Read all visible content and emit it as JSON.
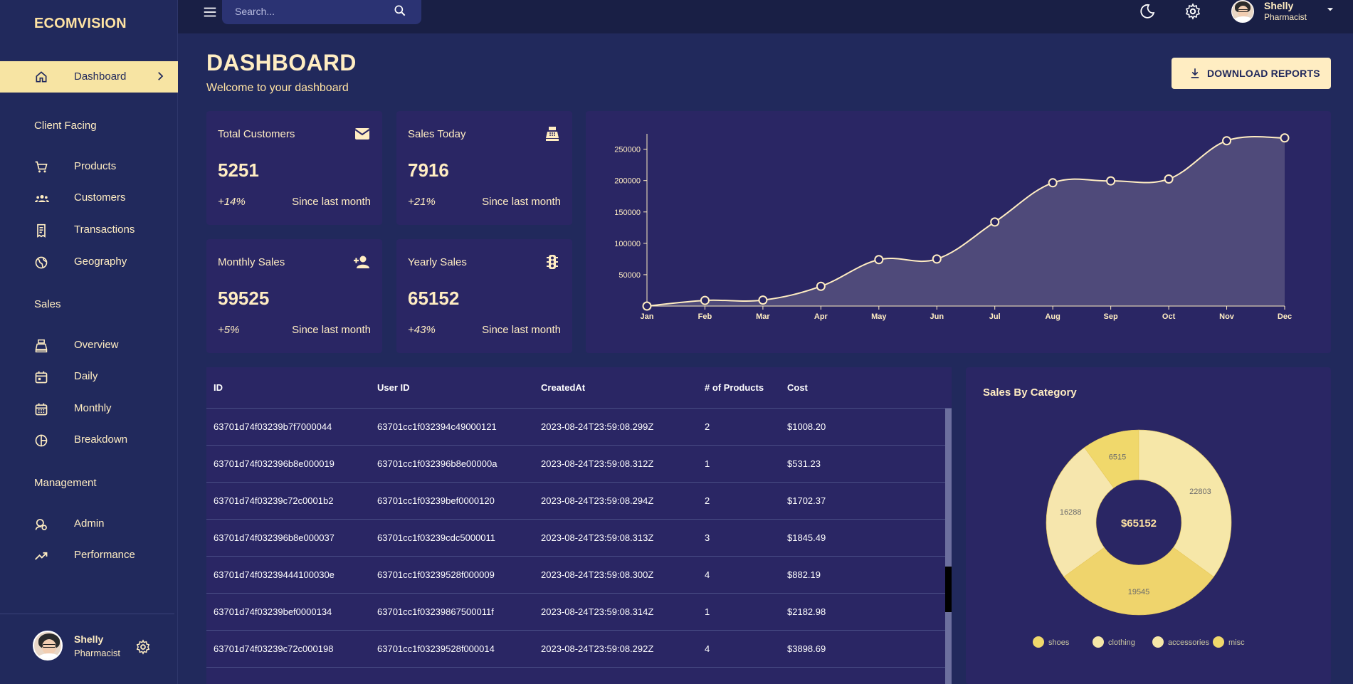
{
  "brand": "ECOMVISION",
  "sidebar": {
    "active": "Dashboard",
    "sections": [
      {
        "title": "Client Facing",
        "items": [
          "Products",
          "Customers",
          "Transactions",
          "Geography"
        ]
      },
      {
        "title": "Sales",
        "items": [
          "Overview",
          "Daily",
          "Monthly",
          "Breakdown"
        ]
      },
      {
        "title": "Management",
        "items": [
          "Admin",
          "Performance"
        ]
      }
    ],
    "user": {
      "name": "Shelly",
      "role": "Pharmacist"
    }
  },
  "topbar": {
    "search_placeholder": "Search...",
    "user": {
      "name": "Shelly",
      "role": "Pharmacist"
    }
  },
  "header": {
    "title": "DASHBOARD",
    "subtitle": "Welcome to your dashboard",
    "download_label": "DOWNLOAD REPORTS"
  },
  "stats": [
    {
      "title": "Total Customers",
      "value": "5251",
      "increase": "+14%",
      "desc": "Since last month",
      "icon": "email-icon"
    },
    {
      "title": "Sales Today",
      "value": "7916",
      "increase": "+21%",
      "desc": "Since last month",
      "icon": "point-of-sale-icon"
    },
    {
      "title": "Monthly Sales",
      "value": "59525",
      "increase": "+5%",
      "desc": "Since last month",
      "icon": "person-add-icon"
    },
    {
      "title": "Yearly Sales",
      "value": "65152",
      "increase": "+43%",
      "desc": "Since last month",
      "icon": "traffic-icon"
    }
  ],
  "table": {
    "columns": [
      "ID",
      "User ID",
      "CreatedAt",
      "# of Products",
      "Cost"
    ],
    "rows": [
      [
        "63701d74f03239b7f7000044",
        "63701cc1f032394c49000121",
        "2023-08-24T23:59:08.299Z",
        "2",
        "$1008.20"
      ],
      [
        "63701d74f032396b8e000019",
        "63701cc1f032396b8e00000a",
        "2023-08-24T23:59:08.312Z",
        "1",
        "$531.23"
      ],
      [
        "63701d74f03239c72c0001b2",
        "63701cc1f03239bef0000120",
        "2023-08-24T23:59:08.294Z",
        "2",
        "$1702.37"
      ],
      [
        "63701d74f032396b8e000037",
        "63701cc1f03239cdc5000011",
        "2023-08-24T23:59:08.313Z",
        "3",
        "$1845.49"
      ],
      [
        "63701d74f03239444100030e",
        "63701cc1f03239528f000009",
        "2023-08-24T23:59:08.300Z",
        "4",
        "$882.19"
      ],
      [
        "63701d74f03239bef0000134",
        "63701cc1f03239867500011f",
        "2023-08-24T23:59:08.314Z",
        "1",
        "$2182.98"
      ],
      [
        "63701d74f03239c72c000198",
        "63701cc1f03239528f000014",
        "2023-08-24T23:59:08.292Z",
        "4",
        "$3898.69"
      ]
    ]
  },
  "pie": {
    "title": "Sales By Category",
    "center": "$65152"
  },
  "chart_data": [
    {
      "type": "area",
      "categories": [
        "Jan",
        "Feb",
        "Mar",
        "Apr",
        "May",
        "Jun",
        "Jul",
        "Aug",
        "Sep",
        "Oct",
        "Nov",
        "Dec"
      ],
      "values": [
        0,
        9000,
        9500,
        31500,
        74000,
        75000,
        134000,
        196500,
        199500,
        202500,
        263500,
        268000
      ],
      "yticks": [
        50000,
        100000,
        150000,
        200000,
        250000
      ],
      "ylim": [
        0,
        270000
      ],
      "grid": false
    },
    {
      "type": "pie",
      "categories": [
        "shoes",
        "clothing",
        "accessories",
        "misc"
      ],
      "values": [
        6515,
        22803,
        19545,
        16288
      ],
      "total": "$65152",
      "legend": "bottom"
    }
  ],
  "colors": {
    "accent": "#ffedc2",
    "background": "#21295c",
    "panel": "#2a2664",
    "topbar": "#191f45"
  }
}
